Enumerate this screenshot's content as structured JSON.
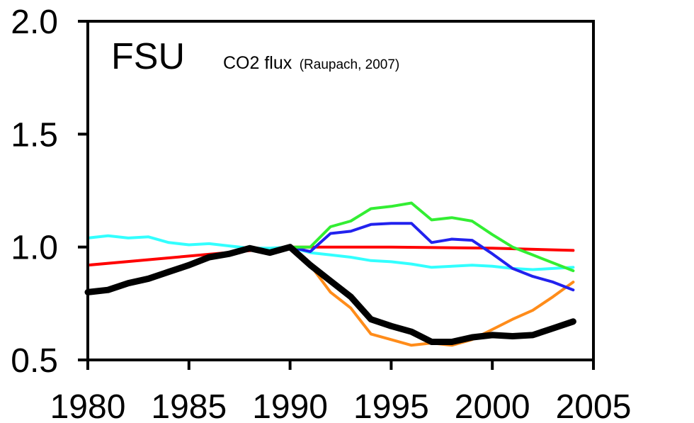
{
  "chart_data": {
    "type": "line",
    "title": "FSU",
    "subtitle_main": "CO2 flux",
    "subtitle_note": "(Raupach, 2007)",
    "xlabel": "",
    "ylabel": "",
    "xlim": [
      1980,
      2005
    ],
    "ylim": [
      0.5,
      2.0
    ],
    "x_ticks": [
      "1980",
      "1985",
      "1990",
      "1995",
      "2000",
      "2005"
    ],
    "y_ticks": [
      "0.5",
      "1.0",
      "1.5",
      "2.0"
    ],
    "grid": false,
    "legend": "none",
    "series": [
      {
        "color": "#ff0000",
        "width": 4,
        "x": [
          1980,
          1985,
          1990,
          1995,
          2000,
          2004
        ],
        "y": [
          0.92,
          0.96,
          1.0,
          1.0,
          0.995,
          0.985
        ]
      },
      {
        "color": "#33ffff",
        "width": 4,
        "x": [
          1980,
          1981,
          1982,
          1983,
          1984,
          1985,
          1986,
          1987,
          1988,
          1989,
          1990,
          1991,
          1992,
          1993,
          1994,
          1995,
          1996,
          1997,
          1998,
          1999,
          2000,
          2001,
          2002,
          2003,
          2004
        ],
        "y": [
          1.04,
          1.05,
          1.04,
          1.045,
          1.02,
          1.01,
          1.015,
          1.005,
          0.995,
          0.995,
          1.0,
          0.975,
          0.965,
          0.955,
          0.94,
          0.935,
          0.925,
          0.91,
          0.915,
          0.92,
          0.915,
          0.905,
          0.9,
          0.905,
          0.91
        ]
      },
      {
        "color": "#ff8c1a",
        "width": 4,
        "x": [
          1990,
          1991,
          1992,
          1993,
          1994,
          1995,
          1996,
          1997,
          1998,
          1999,
          2000,
          2001,
          2002,
          2003,
          2004
        ],
        "y": [
          1.0,
          0.92,
          0.8,
          0.73,
          0.615,
          0.59,
          0.565,
          0.575,
          0.565,
          0.59,
          0.635,
          0.68,
          0.72,
          0.78,
          0.845
        ]
      },
      {
        "color": "#2222ee",
        "width": 4,
        "x": [
          1990,
          1991,
          1992,
          1993,
          1994,
          1995,
          1996,
          1997,
          1998,
          1999,
          2000,
          2001,
          2002,
          2003,
          2004
        ],
        "y": [
          1.0,
          0.98,
          1.06,
          1.07,
          1.1,
          1.105,
          1.105,
          1.02,
          1.035,
          1.03,
          0.97,
          0.905,
          0.87,
          0.845,
          0.81
        ]
      },
      {
        "color": "#33ee33",
        "width": 4,
        "x": [
          1990,
          1991,
          1992,
          1993,
          1994,
          1995,
          1996,
          1997,
          1998,
          1999,
          2000,
          2001,
          2002,
          2003,
          2004
        ],
        "y": [
          1.0,
          1.0,
          1.09,
          1.115,
          1.17,
          1.18,
          1.195,
          1.12,
          1.13,
          1.115,
          1.055,
          1.0,
          0.965,
          0.93,
          0.895
        ]
      },
      {
        "color": "#000000",
        "width": 9,
        "x": [
          1980,
          1981,
          1982,
          1983,
          1984,
          1985,
          1986,
          1987,
          1988,
          1989,
          1990,
          1991,
          1992,
          1993,
          1994,
          1995,
          1996,
          1997,
          1998,
          1999,
          2000,
          2001,
          2002,
          2003,
          2004
        ],
        "y": [
          0.8,
          0.81,
          0.84,
          0.86,
          0.89,
          0.92,
          0.955,
          0.97,
          0.995,
          0.975,
          1.0,
          0.92,
          0.85,
          0.78,
          0.68,
          0.65,
          0.625,
          0.58,
          0.58,
          0.6,
          0.61,
          0.605,
          0.61,
          0.64,
          0.67
        ]
      }
    ]
  }
}
